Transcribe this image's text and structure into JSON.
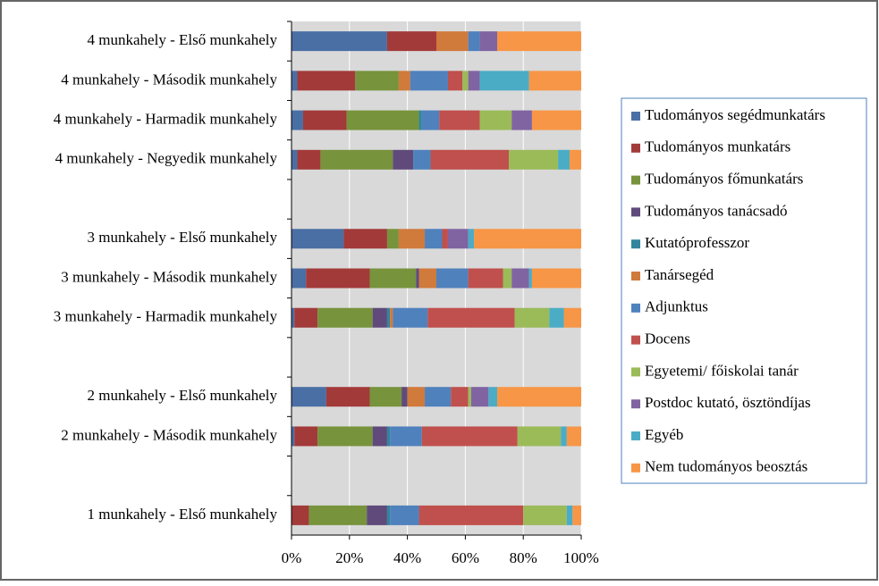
{
  "chart_data": {
    "type": "bar",
    "orientation": "horizontal",
    "stacked": true,
    "categories": [
      "4 munkahely - Első munkahely",
      "4 munkahely - Második munkahely",
      "4 munkahely - Harmadik munkahely",
      "4 munkahely - Negyedik munkahely",
      null,
      "3 munkahely - Első munkahely",
      "3 munkahely - Második munkahely",
      "3 munkahely - Harmadik munkahely",
      null,
      "2 munkahely - Első munkahely",
      "2 munkahely - Második munkahely",
      null,
      "1 munkahely - Első munkahely"
    ],
    "series": [
      {
        "name": "Tudományos segédmunkatárs",
        "color": "#4a6fa5",
        "values": [
          33,
          2,
          4,
          2,
          null,
          18,
          5,
          1,
          null,
          12,
          1,
          null,
          0
        ]
      },
      {
        "name": "Tudományos munkatárs",
        "color": "#a33a3a",
        "values": [
          17,
          20,
          15,
          8,
          null,
          15,
          22,
          8,
          null,
          15,
          8,
          null,
          6
        ]
      },
      {
        "name": "Tudományos főmunkatárs",
        "color": "#77933c",
        "values": [
          0,
          15,
          25,
          25,
          null,
          4,
          16,
          19,
          null,
          11,
          19,
          null,
          20
        ]
      },
      {
        "name": "Tudományos tanácsadó",
        "color": "#604a7b",
        "values": [
          0,
          0,
          0,
          7,
          null,
          0,
          1,
          5,
          null,
          2,
          5,
          null,
          7
        ]
      },
      {
        "name": "Kutatóprofesszor",
        "color": "#31859c",
        "values": [
          0,
          0,
          1,
          0,
          null,
          0,
          0,
          1,
          null,
          0,
          1,
          null,
          1
        ]
      },
      {
        "name": "Tanársegéd",
        "color": "#d07a3c",
        "values": [
          11,
          4,
          0,
          0,
          null,
          9,
          6,
          1,
          null,
          6,
          0,
          null,
          0
        ]
      },
      {
        "name": "Adjunktus",
        "color": "#4f81bd",
        "values": [
          4,
          13,
          6,
          6,
          null,
          6,
          11,
          12,
          null,
          9,
          11,
          null,
          10
        ]
      },
      {
        "name": "Docens",
        "color": "#c0504d",
        "values": [
          0,
          5,
          14,
          27,
          null,
          2,
          12,
          30,
          null,
          6,
          33,
          null,
          36
        ]
      },
      {
        "name": "Egyetemi/ főiskolai tanár",
        "color": "#9bbb59",
        "values": [
          0,
          2,
          11,
          17,
          null,
          0,
          3,
          12,
          null,
          1,
          15,
          null,
          15
        ]
      },
      {
        "name": "Postdoc kutató, ösztöndíjas",
        "color": "#8064a2",
        "values": [
          6,
          4,
          7,
          0,
          null,
          7,
          6,
          0,
          null,
          6,
          0,
          null,
          0
        ]
      },
      {
        "name": "Egyéb",
        "color": "#4bacc6",
        "values": [
          0,
          17,
          0,
          4,
          null,
          2,
          1,
          5,
          null,
          3,
          2,
          null,
          2
        ]
      },
      {
        "name": "Nem tudományos beosztás",
        "color": "#f79646",
        "values": [
          29,
          18,
          17,
          4,
          null,
          37,
          17,
          6,
          null,
          29,
          5,
          null,
          3
        ]
      }
    ],
    "xlim": [
      0,
      100
    ],
    "xticks": [
      {
        "value": 0,
        "label": "0%"
      },
      {
        "value": 20,
        "label": "20%"
      },
      {
        "value": 40,
        "label": "40%"
      },
      {
        "value": 60,
        "label": "60%"
      },
      {
        "value": 80,
        "label": "80%"
      },
      {
        "value": 100,
        "label": "100%"
      }
    ],
    "grid": true,
    "legend": "right"
  }
}
